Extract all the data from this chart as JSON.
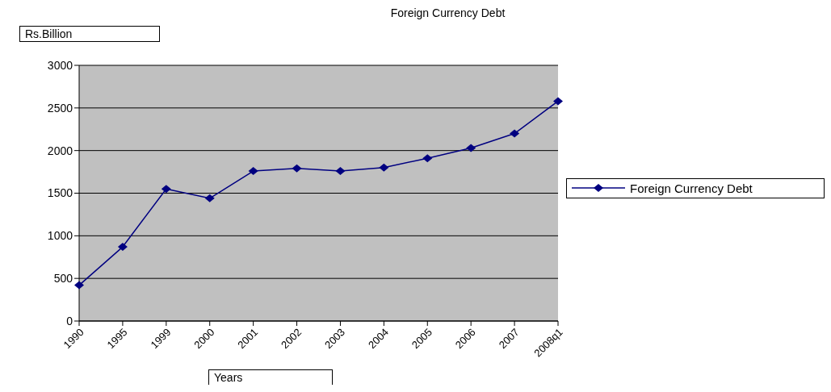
{
  "chart_data": {
    "type": "line",
    "title": "Foreign Currency Debt",
    "xlabel": "Years",
    "ylabel": "Rs.Billion",
    "categories": [
      "1990",
      "1995",
      "1999",
      "2000",
      "2001",
      "2002",
      "2003",
      "2004",
      "2005",
      "2006",
      "2007",
      "2008q1"
    ],
    "series": [
      {
        "name": "Foreign Currency Debt",
        "color": "#000080",
        "values": [
          420,
          870,
          1550,
          1440,
          1760,
          1790,
          1760,
          1800,
          1910,
          2030,
          2200,
          2580
        ]
      }
    ],
    "ylim": [
      0,
      3000
    ],
    "yticks": [
      0,
      500,
      1000,
      1500,
      2000,
      2500,
      3000
    ],
    "grid": "y",
    "legend": "right",
    "marker": "diamond"
  }
}
